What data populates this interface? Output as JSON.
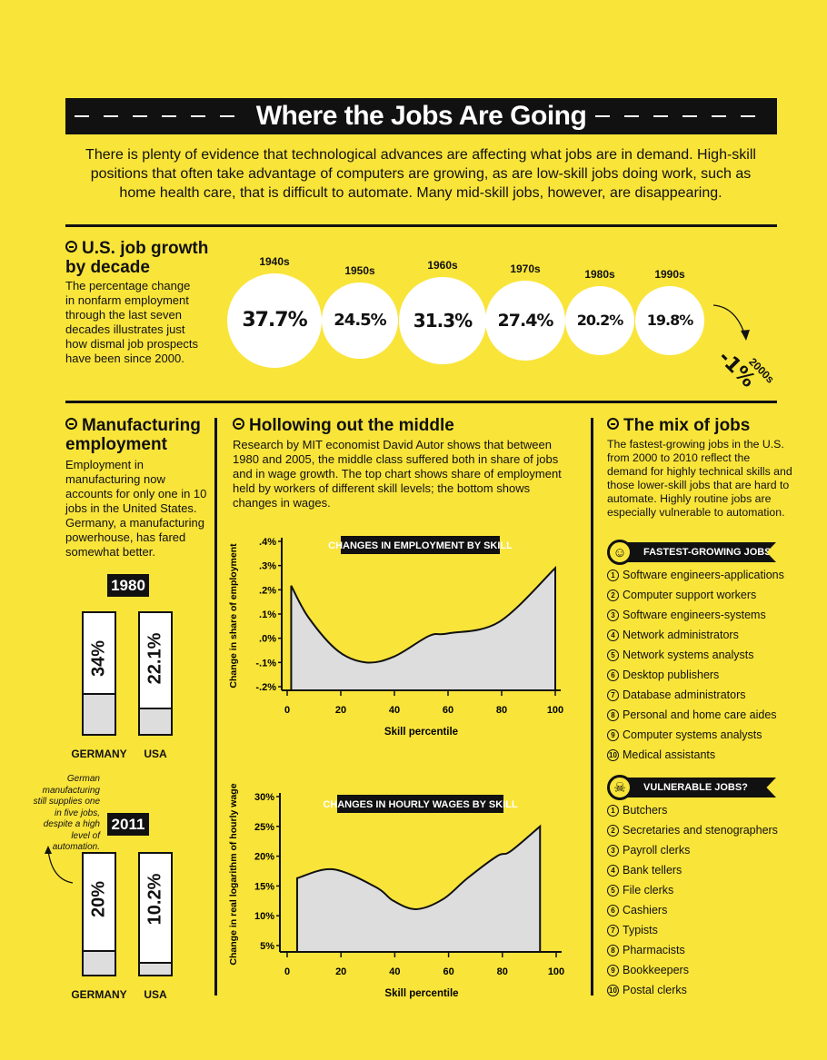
{
  "title": "Where the Jobs Are Going",
  "intro": "There is plenty of evidence that technological advances are affecting what jobs are in demand. High-skill positions that often take advantage of computers are growing, as are low-skill jobs doing work, such as home health care, that is difficult to automate. Many mid-skill jobs, however, are disappearing.",
  "colors": {
    "background": "#f9e43a",
    "ink": "#111111",
    "area_fill": "#dddddd"
  },
  "job_growth": {
    "title": "U.S. job growth by decade",
    "description": "The percentage change in nonfarm employment through the last seven decades illustrates just how dismal job prospects have been since 2000.",
    "decades": [
      {
        "label": "1940s",
        "value": 37.7,
        "text": "37.7%"
      },
      {
        "label": "1950s",
        "value": 24.5,
        "text": "24.5%"
      },
      {
        "label": "1960s",
        "value": 31.3,
        "text": "31.3%"
      },
      {
        "label": "1970s",
        "value": 27.4,
        "text": "27.4%"
      },
      {
        "label": "1980s",
        "value": 20.2,
        "text": "20.2%"
      },
      {
        "label": "1990s",
        "value": 19.8,
        "text": "19.8%"
      }
    ],
    "last": {
      "label": "2000s",
      "value": -1,
      "text": "-1%"
    }
  },
  "manufacturing": {
    "title": "Manufacturing employment",
    "description": "Employment in manufacturing now accounts for only one in 10 jobs in the United States. Germany, a manufacturing powerhouse, has fared somewhat better.",
    "note": "German manufacturing still supplies one in five jobs, despite a high level of automation.",
    "years": [
      {
        "year": "1980",
        "bars": [
          {
            "country": "GERMANY",
            "value": 34,
            "text": "34%"
          },
          {
            "country": "USA",
            "value": 22.1,
            "text": "22.1%"
          }
        ]
      },
      {
        "year": "2011",
        "bars": [
          {
            "country": "GERMANY",
            "value": 20,
            "text": "20%"
          },
          {
            "country": "USA",
            "value": 10.2,
            "text": "10.2%"
          }
        ]
      }
    ]
  },
  "hollowing": {
    "title": "Hollowing out the middle",
    "description": "Research by MIT economist David Autor shows that between 1980 and 2005, the middle class suffered both in share of jobs and in wage growth. The top chart shows share of employment held by workers of different skill levels; the bottom shows changes in wages."
  },
  "chart_data": [
    {
      "type": "area",
      "title": "CHANGES IN EMPLOYMENT BY SKILL",
      "xlabel": "Skill percentile",
      "ylabel": "Change in share of employment",
      "xlim": [
        0,
        100
      ],
      "ylim": [
        -0.2,
        0.4
      ],
      "xticks": [
        "0",
        "20",
        "40",
        "60",
        "80",
        "100"
      ],
      "yticks": [
        ".4%",
        ".3%",
        ".2%",
        ".1%",
        ".0%",
        "-.1%",
        "-.2%"
      ],
      "x": [
        1.5,
        8,
        19,
        29.5,
        40,
        53,
        60,
        79,
        100
      ],
      "y": [
        0.217,
        0.085,
        -0.053,
        -0.1,
        -0.075,
        0.01,
        0.02,
        0.067,
        0.29
      ]
    },
    {
      "type": "area",
      "title": "CHANGES IN HOURLY WAGES BY SKILL",
      "xlabel": "Skill percentile",
      "ylabel": "Change in real logarithm of hourly wage",
      "xlim": [
        0,
        100
      ],
      "ylim": [
        5,
        30
      ],
      "xticks": [
        "0",
        "20",
        "40",
        "60",
        "80",
        "100"
      ],
      "yticks": [
        "30%",
        "25%",
        "20%",
        "15%",
        "10%",
        "5%"
      ],
      "x": [
        3.7,
        17,
        33,
        39.5,
        48,
        58,
        67,
        78,
        83,
        94
      ],
      "y": [
        16.3,
        17.8,
        14.8,
        12.5,
        11.1,
        12.8,
        16.3,
        20,
        20.8,
        25
      ]
    }
  ],
  "mix": {
    "title": "The mix of jobs",
    "description": "The fastest-growing jobs in the U.S. from 2000 to 2010 reflect the demand for highly technical skills and those lower-skill jobs that are hard to automate. Highly routine jobs are especially vulnerable to automation.",
    "fastest": {
      "label": "FASTEST-GROWING JOBS",
      "icon": "smiley-face-icon",
      "items": [
        "Software engineers-applications",
        "Computer support workers",
        "Software engineers-systems",
        "Network administrators",
        "Network systems analysts",
        "Desktop publishers",
        "Database administrators",
        "Personal and home care aides",
        "Computer systems analysts",
        "Medical assistants"
      ]
    },
    "vulnerable": {
      "label": "VULNERABLE JOBS?",
      "icon": "skull-icon",
      "items": [
        "Butchers",
        "Secretaries and stenographers",
        "Payroll clerks",
        "Bank tellers",
        "File clerks",
        "Cashiers",
        "Typists",
        "Pharmacists",
        "Bookkeepers",
        "Postal clerks"
      ]
    }
  }
}
